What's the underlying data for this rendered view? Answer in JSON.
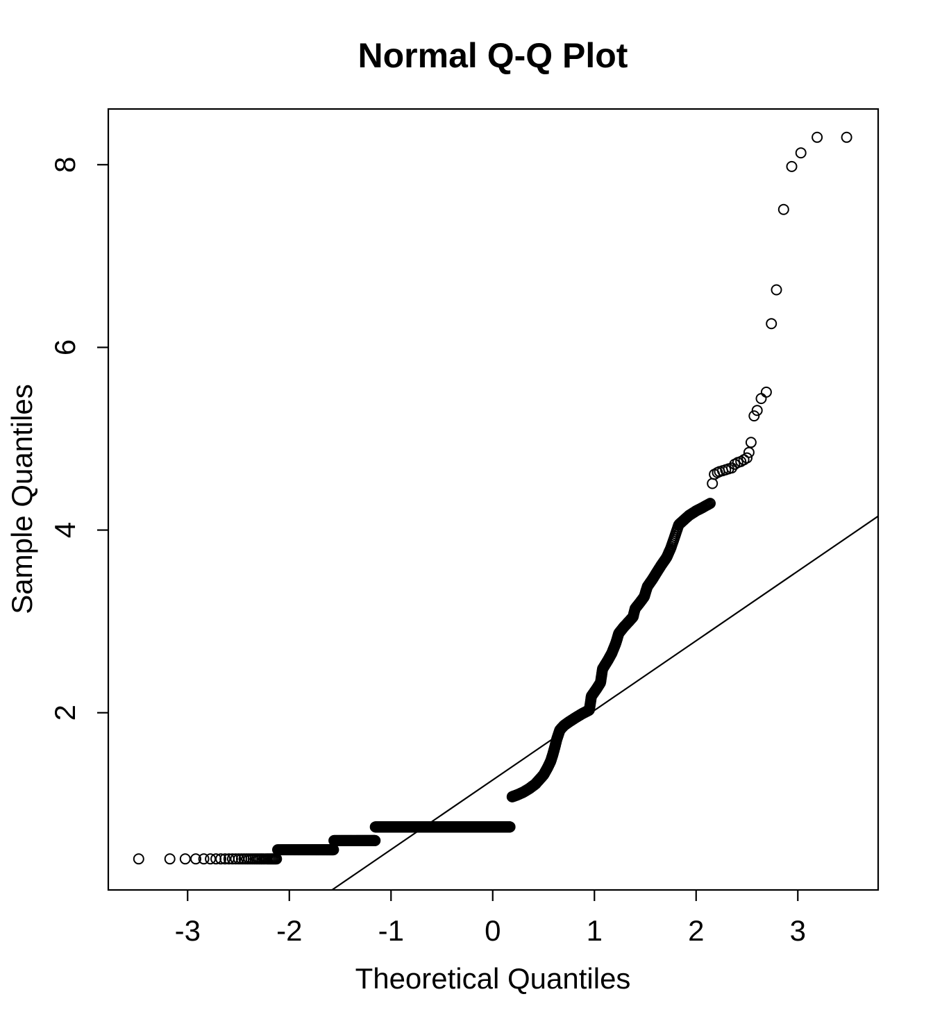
{
  "page": {
    "background": "#ffffff",
    "foreground": "#000000"
  },
  "chart_data": {
    "type": "scatter",
    "subtype": "normal-qq-plot",
    "title": "Normal Q-Q Plot",
    "xlabel": "Theoretical Quantiles",
    "ylabel": "Sample Quantiles",
    "xlim": [
      -3.78,
      3.79
    ],
    "ylim": [
      0.06,
      8.61
    ],
    "x_ticks": [
      -3,
      -2,
      -1,
      0,
      1,
      2,
      3
    ],
    "x_tick_labels": [
      "-3",
      "-2",
      "-1",
      "0",
      "1",
      "2",
      "3"
    ],
    "y_ticks": [
      2,
      4,
      6,
      8
    ],
    "y_tick_labels": [
      "2",
      "4",
      "6",
      "8"
    ],
    "grid": false,
    "legend": "none",
    "n": 2000,
    "discrete_bands": [
      {
        "value": 0.4,
        "p_from": 0.0,
        "p_to": 0.0168
      },
      {
        "value": 0.5,
        "p_from": 0.0168,
        "p_to": 0.0588
      },
      {
        "value": 0.6,
        "p_from": 0.0588,
        "p_to": 0.124
      },
      {
        "value": 0.75,
        "p_from": 0.124,
        "p_to": 0.5675
      }
    ],
    "curve": {
      "p_from": 0.5753,
      "p_to": 0.98422,
      "anchors": [
        [
          0.19,
          1.08
        ],
        [
          0.24,
          1.1
        ],
        [
          0.3,
          1.13
        ],
        [
          0.36,
          1.17
        ],
        [
          0.42,
          1.22
        ],
        [
          0.46,
          1.27
        ],
        [
          0.5,
          1.32
        ],
        [
          0.54,
          1.4
        ],
        [
          0.57,
          1.47
        ],
        [
          0.59,
          1.54
        ],
        [
          0.61,
          1.62
        ],
        [
          0.63,
          1.71
        ],
        [
          0.66,
          1.81
        ],
        [
          0.7,
          1.86
        ],
        [
          0.75,
          1.9
        ],
        [
          0.82,
          1.95
        ],
        [
          0.88,
          1.99
        ],
        [
          0.95,
          2.03
        ],
        [
          0.97,
          2.18
        ],
        [
          1.02,
          2.26
        ],
        [
          1.06,
          2.33
        ],
        [
          1.08,
          2.48
        ],
        [
          1.13,
          2.57
        ],
        [
          1.17,
          2.65
        ],
        [
          1.21,
          2.76
        ],
        [
          1.24,
          2.87
        ],
        [
          1.29,
          2.94
        ],
        [
          1.34,
          3.0
        ],
        [
          1.38,
          3.05
        ],
        [
          1.4,
          3.14
        ],
        [
          1.45,
          3.21
        ],
        [
          1.49,
          3.27
        ],
        [
          1.52,
          3.38
        ],
        [
          1.57,
          3.46
        ],
        [
          1.62,
          3.55
        ],
        [
          1.66,
          3.62
        ],
        [
          1.71,
          3.7
        ],
        [
          1.75,
          3.8
        ],
        [
          1.79,
          3.93
        ],
        [
          1.83,
          4.06
        ],
        [
          1.88,
          4.11
        ],
        [
          1.93,
          4.16
        ],
        [
          2.0,
          4.21
        ],
        [
          2.07,
          4.25
        ],
        [
          2.15,
          4.3
        ]
      ]
    },
    "tail_points": [
      [
        2.16,
        4.51
      ],
      [
        2.18,
        4.61
      ],
      [
        2.21,
        4.63
      ],
      [
        2.23,
        4.64
      ],
      [
        2.26,
        4.65
      ],
      [
        2.29,
        4.66
      ],
      [
        2.32,
        4.67
      ],
      [
        2.35,
        4.68
      ],
      [
        2.38,
        4.72
      ],
      [
        2.41,
        4.74
      ],
      [
        2.44,
        4.75
      ],
      [
        2.47,
        4.77
      ],
      [
        2.5,
        4.79
      ],
      [
        2.52,
        4.85
      ],
      [
        2.54,
        4.96
      ],
      [
        2.57,
        5.25
      ],
      [
        2.6,
        5.31
      ],
      [
        2.64,
        5.44
      ],
      [
        2.69,
        5.51
      ],
      [
        2.74,
        6.26
      ],
      [
        2.79,
        6.63
      ],
      [
        2.86,
        7.51
      ],
      [
        2.94,
        7.98
      ],
      [
        3.03,
        8.13
      ],
      [
        3.19,
        8.3
      ],
      [
        3.48,
        8.3
      ]
    ],
    "qqline": {
      "slope": 0.762,
      "intercept": 1.264
    },
    "marker": {
      "shape": "open-circle",
      "radius_px": 7,
      "stroke_px": 2,
      "color": "#000000"
    },
    "line_color": "#000000",
    "axis_color": "#000000"
  }
}
